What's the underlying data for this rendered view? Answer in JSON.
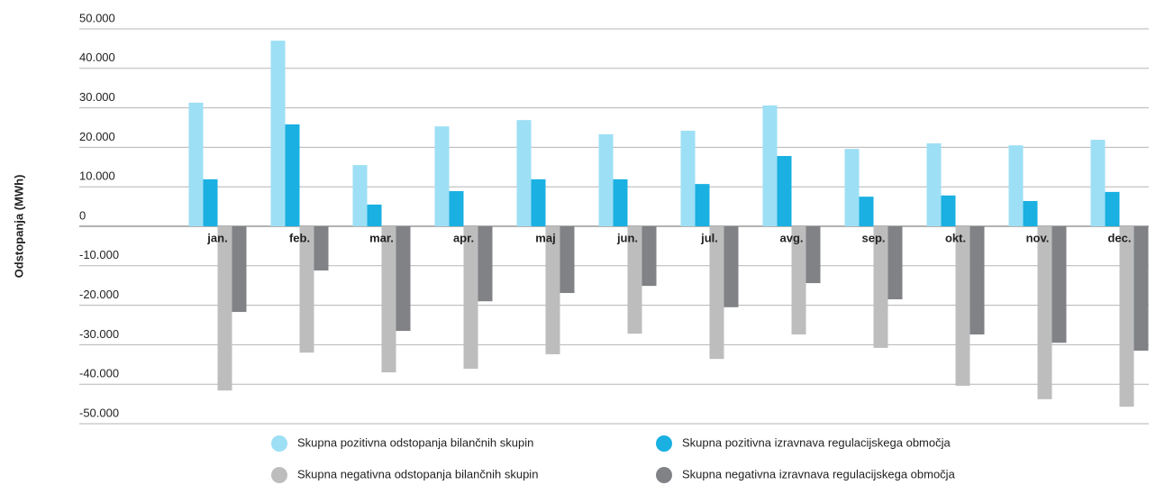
{
  "chart_data": {
    "type": "bar",
    "y_label": "Odstopanja (MWh)",
    "categories": [
      "jan.",
      "feb.",
      "mar.",
      "apr.",
      "maj",
      "jun.",
      "jul.",
      "avg.",
      "sep.",
      "okt.",
      "nov.",
      "dec."
    ],
    "series": [
      {
        "name": "Skupna pozitivna odstopanja bilančnih skupin",
        "color": "#9ddff5",
        "values": [
          31300,
          47000,
          15500,
          25300,
          26900,
          23300,
          24200,
          30600,
          19600,
          21000,
          20500,
          21900
        ]
      },
      {
        "name": "Skupna pozitivna izravnava regulacijskega območja",
        "color": "#1ab0e2",
        "values": [
          11900,
          25800,
          5500,
          8900,
          11900,
          11900,
          10700,
          17800,
          7500,
          7800,
          6400,
          8700
        ]
      },
      {
        "name": "Skupna negativna odstopanja bilančnih skupin",
        "color": "#bdbdbe",
        "values": [
          -41600,
          -32000,
          -37000,
          -36100,
          -32400,
          -27200,
          -33600,
          -27400,
          -30800,
          -40400,
          -43800,
          -45700
        ]
      },
      {
        "name": "Skupna negativna izravnava regulacijskega območja",
        "color": "#808285",
        "values": [
          -21700,
          -11200,
          -26500,
          -19000,
          -16900,
          -15100,
          -20500,
          -14400,
          -18500,
          -27400,
          -29500,
          -31500
        ]
      }
    ],
    "ylim": [
      -50000,
      50000
    ],
    "yticks": [
      {
        "value": -50000,
        "label": "-50.000"
      },
      {
        "value": -40000,
        "label": "-40.000"
      },
      {
        "value": -30000,
        "label": "-30.000"
      },
      {
        "value": -20000,
        "label": "-20.000"
      },
      {
        "value": -10000,
        "label": "-10.000"
      },
      0,
      {
        "value": 10000,
        "label": "10.000"
      },
      {
        "value": 20000,
        "label": "20.000"
      },
      {
        "value": 30000,
        "label": "30.000"
      },
      {
        "value": 40000,
        "label": "40.000"
      },
      {
        "value": 50000,
        "label": "50.000"
      }
    ],
    "grid": true
  }
}
